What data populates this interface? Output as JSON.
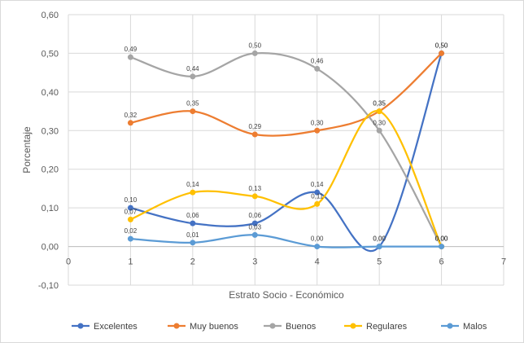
{
  "chart_data": {
    "type": "line",
    "title": "",
    "xlabel": "Estrato Socio - Económico",
    "ylabel": "Porcentaje",
    "xlim": [
      0,
      7
    ],
    "ylim": [
      -0.1,
      0.6
    ],
    "x_ticks": [
      "0",
      "1",
      "2",
      "3",
      "4",
      "5",
      "6",
      "7"
    ],
    "y_ticks": [
      "-0,10",
      "0,00",
      "0,10",
      "0,20",
      "0,30",
      "0,40",
      "0,50",
      "0,60"
    ],
    "grid": true,
    "legend_position": "bottom",
    "x": [
      1,
      2,
      3,
      4,
      5,
      6
    ],
    "series": [
      {
        "name": "Excelentes",
        "color": "#4472C4",
        "values": [
          0.1,
          0.06,
          0.06,
          0.14,
          0.0,
          0.5
        ],
        "labels": [
          "0,10",
          "0,06",
          "0,06",
          "0,14",
          "0,00",
          "0,50"
        ]
      },
      {
        "name": "Muy buenos",
        "color": "#ED7D31",
        "values": [
          0.32,
          0.35,
          0.29,
          0.3,
          0.35,
          0.5
        ],
        "labels": [
          "0,32",
          "0,35",
          "0,29",
          "0,30",
          "0,35",
          "0,50"
        ]
      },
      {
        "name": "Buenos",
        "color": "#A5A5A5",
        "values": [
          0.49,
          0.44,
          0.5,
          0.46,
          0.3,
          0.0
        ],
        "labels": [
          "0,49",
          "0,44",
          "0,50",
          "0,46",
          "0,30",
          "0,00"
        ]
      },
      {
        "name": "Regulares",
        "color": "#FFC000",
        "values": [
          0.07,
          0.14,
          0.13,
          0.11,
          0.35,
          0.0
        ],
        "labels": [
          "0,07",
          "0,14",
          "0,13",
          "0,11",
          "0,35",
          "0,00"
        ]
      },
      {
        "name": "Malos",
        "color": "#5B9BD5",
        "values": [
          0.02,
          0.01,
          0.03,
          0.0,
          0.0,
          0.0
        ],
        "labels": [
          "0,02",
          "0,01",
          "0,03",
          "0,00",
          "0,00",
          "0,00"
        ]
      }
    ]
  }
}
